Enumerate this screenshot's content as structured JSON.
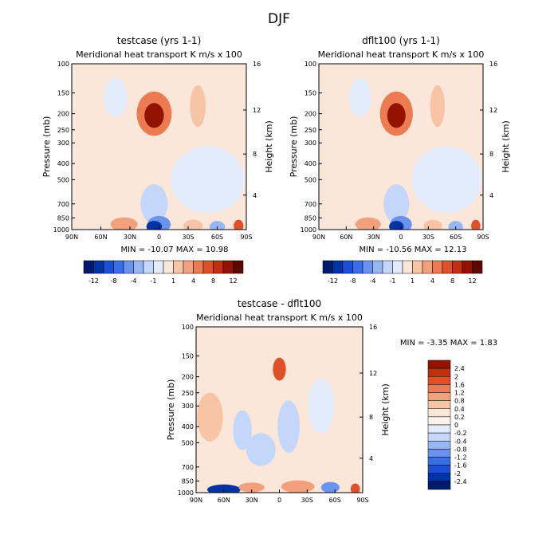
{
  "chart_data": {
    "type": "heatmap",
    "title": "DJF",
    "units_label": "K m/s x 100",
    "panels": [
      {
        "id": "left",
        "title": "testcase (yrs 1-1)",
        "subtitle": "Meridional heat transport",
        "units": "K m/s x 100",
        "xlabel": "",
        "ylabel": "Pressure (mb)",
        "y2label": "Height (km)",
        "x_ticks": [
          "90N",
          "60N",
          "30N",
          "0",
          "30S",
          "60S",
          "90S"
        ],
        "y_ticks": [
          "100",
          "150",
          "200",
          "250",
          "300",
          "400",
          "500",
          "700",
          "850",
          "1000"
        ],
        "y2_ticks": [
          "16",
          "12",
          "8",
          "4"
        ],
        "min": -10.07,
        "max": 10.98,
        "stats_text": "MIN = -10.07   MAX =  10.98",
        "features": [
          {
            "lat": 5,
            "p": 200,
            "value": 10.98,
            "label": "upper max"
          },
          {
            "lat": 0,
            "p": 950,
            "value": -10.07,
            "label": "lower min"
          },
          {
            "lat": 36,
            "p": 920,
            "value": 4,
            "label": "positive cell"
          },
          {
            "lat": -35,
            "p": 940,
            "value": 3,
            "label": "positive cell"
          },
          {
            "lat": -80,
            "p": 950,
            "value": 8,
            "label": "positive cell"
          },
          {
            "lat": -60,
            "p": 960,
            "value": -4,
            "label": "negative cell"
          }
        ]
      },
      {
        "id": "right",
        "title": "dflt100 (yrs 1-1)",
        "subtitle": "Meridional heat transport",
        "units": "K m/s x 100",
        "xlabel": "",
        "ylabel": "Pressure (mb)",
        "y2label": "Height (km)",
        "x_ticks": [
          "90N",
          "60N",
          "30N",
          "0",
          "30S",
          "60S",
          "90S"
        ],
        "y_ticks": [
          "100",
          "150",
          "200",
          "250",
          "300",
          "400",
          "500",
          "700",
          "850",
          "1000"
        ],
        "y2_ticks": [
          "16",
          "12",
          "8",
          "4"
        ],
        "min": -10.56,
        "max": 12.13,
        "stats_text": "MIN = -10.56   MAX =  12.13",
        "features": [
          {
            "lat": 8,
            "p": 200,
            "value": 12.13,
            "label": "upper max"
          },
          {
            "lat": 0,
            "p": 950,
            "value": -10.56,
            "label": "lower min"
          },
          {
            "lat": 38,
            "p": 930,
            "value": 4,
            "label": "positive cell"
          },
          {
            "lat": -38,
            "p": 950,
            "value": 3,
            "label": "positive cell"
          },
          {
            "lat": -82,
            "p": 955,
            "value": 7,
            "label": "positive cell"
          }
        ]
      },
      {
        "id": "diff",
        "title": "testcase - dflt100",
        "subtitle": "Meridional heat transport",
        "units": "K m/s x 100",
        "xlabel": "",
        "ylabel": "Pressure (mb)",
        "y2label": "Height (km)",
        "x_ticks": [
          "90N",
          "60N",
          "30N",
          "0",
          "30S",
          "60S",
          "90S"
        ],
        "y_ticks": [
          "100",
          "150",
          "200",
          "250",
          "300",
          "400",
          "500",
          "700",
          "850",
          "1000"
        ],
        "y2_ticks": [
          "16",
          "12",
          "8",
          "4"
        ],
        "min": -3.35,
        "max": 1.83,
        "stats_text": "MIN =  -3.35   MAX =   1.83",
        "features": [
          {
            "lat": 0,
            "p": 180,
            "value": 1.83,
            "label": "upper max"
          },
          {
            "lat": 62,
            "p": 960,
            "value": -3.35,
            "label": "lower min"
          },
          {
            "lat": -82,
            "p": 950,
            "value": 1.6,
            "label": "positive cell"
          }
        ]
      }
    ],
    "colorbar_main": {
      "orientation": "horizontal",
      "labels": [
        "-12",
        "-8",
        "-4",
        "-1",
        "1",
        "4",
        "8",
        "12"
      ],
      "colors": [
        "#001a6e",
        "#0033a8",
        "#1a4fd6",
        "#3a6ee6",
        "#6a93ef",
        "#98b6f4",
        "#c4d6f9",
        "#e3ecfc",
        "#fbe6da",
        "#f8c4a6",
        "#f3a17c",
        "#ec7b52",
        "#de5128",
        "#c0300f",
        "#921400",
        "#5c0800"
      ]
    },
    "colorbar_diff": {
      "orientation": "vertical",
      "labels": [
        "2.4",
        "2",
        "1.6",
        "1.2",
        "0.8",
        "0.4",
        "0.2",
        "0",
        "-0.2",
        "-0.4",
        "-0.8",
        "-1.2",
        "-1.6",
        "-2",
        "-2.4"
      ],
      "colors": [
        "#921400",
        "#c0300f",
        "#de5128",
        "#ec7b52",
        "#f3a17c",
        "#f8c4a6",
        "#fbe6da",
        "#fbf3ec",
        "#e3ecfc",
        "#c4d6f9",
        "#98b6f4",
        "#6a93ef",
        "#3a6ee6",
        "#1a4fd6",
        "#0033a8",
        "#001a6e"
      ]
    }
  }
}
